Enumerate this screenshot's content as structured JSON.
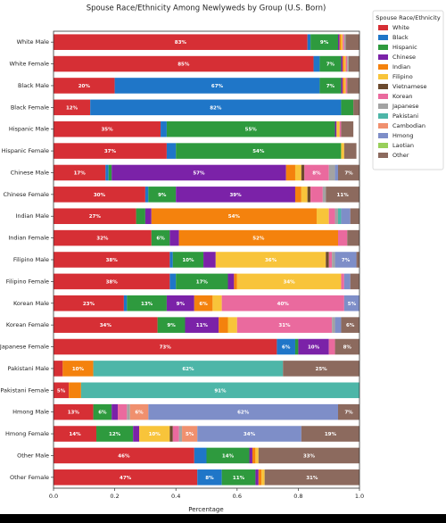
{
  "chart_data": {
    "type": "stacked-barh",
    "title": "Spouse Race/Ethnicity Among Newlyweds by Group (U.S. Born)",
    "xlabel": "Percentage",
    "legend_title": "Spouse Race/Ethnicity",
    "legend": "upper right outside",
    "xlim": [
      0,
      1
    ],
    "xticks": [
      {
        "value": 0,
        "label": "0.0"
      },
      0.2,
      0.4,
      0.6,
      0.8,
      {
        "value": 1,
        "label": "1.0"
      }
    ],
    "categories": [
      "White Male",
      "White Female",
      "Black Male",
      "Black Female",
      "Hispanic Male",
      "Hispanic Female",
      "Chinese Male",
      "Chinese Female",
      "Indian Male",
      "Indian Female",
      "Filipino Male",
      "Filipino Female",
      "Korean Male",
      "Korean Female",
      "Japanese Female",
      "Pakistani Male",
      "Pakistani Female",
      "Hmong Male",
      "Hmong Female",
      "Other Male",
      "Other Female"
    ],
    "series": [
      {
        "name": "White",
        "color": "#d62f35",
        "values": [
          0.83,
          0.85,
          0.2,
          0.12,
          0.35,
          0.37,
          0.17,
          0.3,
          0.27,
          0.32,
          0.38,
          0.38,
          0.23,
          0.34,
          0.73,
          0.03,
          0.05,
          0.13,
          0.14,
          0.46,
          0.47
        ],
        "value_labels": [
          "83%",
          "85%",
          "20%",
          "12%",
          "35%",
          "37%",
          "17%",
          "30%",
          "27%",
          "32%",
          "38%",
          "38%",
          "23%",
          "34%",
          "73%",
          null,
          "5%",
          "13%",
          "14%",
          "46%",
          "47%"
        ]
      },
      {
        "name": "Black",
        "color": "#1f76c8",
        "values": [
          0.01,
          0.02,
          0.67,
          0.82,
          0.02,
          0.03,
          0.01,
          0.01,
          0,
          0,
          0.01,
          0.02,
          0.01,
          0,
          0.06,
          0,
          0,
          0,
          0,
          0.04,
          0.08
        ],
        "value_labels": [
          null,
          null,
          "67%",
          "82%",
          null,
          null,
          null,
          null,
          null,
          null,
          null,
          null,
          null,
          null,
          "6%",
          null,
          null,
          null,
          null,
          null,
          "8%"
        ]
      },
      {
        "name": "Hispanic",
        "color": "#2e9a3e",
        "values": [
          0.09,
          0.07,
          0.07,
          0.04,
          0.55,
          0.54,
          0.01,
          0.09,
          0.03,
          0.06,
          0.1,
          0.17,
          0.13,
          0.09,
          0.01,
          0,
          0,
          0.06,
          0.12,
          0.14,
          0.11
        ],
        "value_labels": [
          "9%",
          "7%",
          "7%",
          null,
          "55%",
          "54%",
          null,
          "9%",
          null,
          "6%",
          "10%",
          "17%",
          "13%",
          "9%",
          null,
          null,
          null,
          "6%",
          "12%",
          "14%",
          "11%"
        ]
      },
      {
        "name": "Chinese",
        "color": "#7b22a8",
        "values": [
          0.005,
          0.005,
          0.005,
          0,
          0.005,
          0,
          0.57,
          0.39,
          0.02,
          0.03,
          0.04,
          0.02,
          0.09,
          0.11,
          0.1,
          0,
          0,
          0.02,
          0.02,
          0.01,
          0.01
        ],
        "value_labels": [
          null,
          null,
          null,
          null,
          null,
          null,
          "57%",
          "39%",
          null,
          null,
          null,
          null,
          "9%",
          "11%",
          "10%",
          null,
          null,
          null,
          null,
          null,
          null
        ]
      },
      {
        "name": "Indian",
        "color": "#f4820d",
        "values": [
          0.005,
          0.005,
          0.005,
          0,
          0,
          0,
          0.03,
          0.02,
          0.54,
          0.52,
          0,
          0.01,
          0.06,
          0.03,
          0,
          0.1,
          0.04,
          0,
          0,
          0.01,
          0.01
        ],
        "value_labels": [
          null,
          null,
          null,
          null,
          null,
          null,
          null,
          null,
          "54%",
          "52%",
          null,
          null,
          "6%",
          null,
          null,
          "10%",
          null,
          null,
          null,
          null,
          null
        ]
      },
      {
        "name": "Filipino",
        "color": "#f8c43a",
        "values": [
          0.005,
          0.005,
          0.005,
          0,
          0.01,
          0.01,
          0.02,
          0.02,
          0.04,
          0,
          0.36,
          0.34,
          0.03,
          0.03,
          0,
          0,
          0,
          0,
          0.1,
          0.01,
          0.01
        ],
        "value_labels": [
          null,
          null,
          null,
          null,
          null,
          null,
          null,
          null,
          null,
          null,
          "36%",
          "34%",
          null,
          null,
          null,
          null,
          null,
          null,
          "10%",
          null,
          null
        ]
      },
      {
        "name": "Vietnamese",
        "color": "#6b4a2e",
        "values": [
          0,
          0,
          0,
          0,
          0,
          0,
          0.01,
          0.01,
          0,
          0,
          0.01,
          0,
          0,
          0,
          0,
          0,
          0,
          0,
          0.01,
          0,
          0
        ]
      },
      {
        "name": "Korean",
        "color": "#ea6a9e",
        "values": [
          0.005,
          0.005,
          0.005,
          0,
          0.005,
          0,
          0.08,
          0.04,
          0.02,
          0.03,
          0.01,
          0.01,
          0.4,
          0.31,
          0.02,
          0,
          0,
          0.03,
          0.02,
          0,
          0
        ],
        "value_labels": [
          null,
          null,
          null,
          null,
          null,
          null,
          "8%",
          null,
          null,
          null,
          null,
          null,
          "40%",
          "31%",
          null,
          null,
          null,
          null,
          null,
          null,
          null
        ]
      },
      {
        "name": "Japanese",
        "color": "#a3a3a3",
        "values": [
          0.005,
          0.005,
          0,
          0,
          0,
          0,
          0.02,
          0.01,
          0.01,
          0,
          0.01,
          0,
          0,
          0.01,
          0,
          0,
          0,
          0.01,
          0.01,
          0,
          0
        ]
      },
      {
        "name": "Pakistani",
        "color": "#4db6a8",
        "values": [
          0,
          0,
          0,
          0,
          0,
          0,
          0,
          0,
          0.01,
          0,
          0,
          0,
          0,
          0,
          0,
          0.62,
          0.91,
          0,
          0,
          0,
          0
        ],
        "value_labels": [
          null,
          null,
          null,
          null,
          null,
          null,
          null,
          null,
          null,
          null,
          null,
          null,
          null,
          null,
          null,
          "62%",
          "91%",
          null,
          null,
          null,
          null
        ]
      },
      {
        "name": "Cambodian",
        "color": "#f0906e",
        "values": [
          0,
          0,
          0,
          0,
          0,
          0,
          0,
          0,
          0,
          0,
          0,
          0,
          0,
          0,
          0,
          0,
          0,
          0.06,
          0.05,
          0,
          0
        ],
        "value_labels": [
          null,
          null,
          null,
          null,
          null,
          null,
          null,
          null,
          null,
          null,
          null,
          null,
          null,
          null,
          null,
          null,
          null,
          "6%",
          "5%",
          null,
          null
        ]
      },
      {
        "name": "Hmong",
        "color": "#7e8ec8",
        "values": [
          0,
          0,
          0,
          0,
          0,
          0,
          0.01,
          0,
          0.03,
          0,
          0.07,
          0.02,
          0.05,
          0.02,
          0,
          0,
          0,
          0.62,
          0.34,
          0,
          0
        ],
        "value_labels": [
          null,
          null,
          null,
          null,
          null,
          null,
          null,
          null,
          null,
          null,
          "7%",
          null,
          "5%",
          null,
          null,
          null,
          null,
          "62%",
          "34%",
          null,
          null
        ]
      },
      {
        "name": "Laotian",
        "color": "#98cf5a",
        "values": [
          0,
          0,
          0,
          0,
          0,
          0,
          0,
          0,
          0,
          0,
          0,
          0,
          0,
          0,
          0,
          0,
          0,
          0,
          0,
          0,
          0
        ]
      },
      {
        "name": "Other",
        "color": "#8c6a5e",
        "values": [
          0.045,
          0.035,
          0.04,
          0.02,
          0.04,
          0.04,
          0.07,
          0.11,
          0.03,
          0.04,
          0.01,
          0.03,
          0,
          0.06,
          0.08,
          0.25,
          0,
          0.07,
          0.19,
          0.33,
          0.31
        ],
        "value_labels": [
          null,
          null,
          null,
          null,
          null,
          null,
          "7%",
          "11%",
          null,
          null,
          null,
          null,
          null,
          "6%",
          "8%",
          "25%",
          null,
          "7%",
          "19%",
          "33%",
          "31%"
        ]
      }
    ]
  }
}
